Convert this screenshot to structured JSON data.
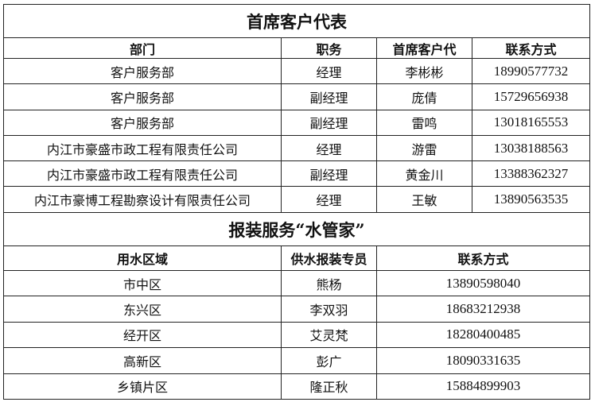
{
  "section1": {
    "title": "首席客户代表",
    "headers": [
      "部门",
      "职务",
      "首席客户代",
      "联系方式"
    ],
    "rows": [
      [
        "客户服务部",
        "经理",
        "李彬彬",
        "18990577732"
      ],
      [
        "客户服务部",
        "副经理",
        "庞倩",
        "15729656938"
      ],
      [
        "客户服务部",
        "副经理",
        "雷鸣",
        "13018165553"
      ],
      [
        "内江市豪盛市政工程有限责任公司",
        "经理",
        "游雷",
        "13038188563"
      ],
      [
        "内江市豪盛市政工程有限责任公司",
        "副经理",
        "黄金川",
        "13388362327"
      ],
      [
        "内江市豪博工程勘察设计有限责任公司",
        "经理",
        "王敏",
        "13890563535"
      ]
    ]
  },
  "section2": {
    "title": "报装服务“水管家”",
    "headers": [
      "用水区域",
      "供水报装专员",
      "联系方式"
    ],
    "rows": [
      [
        "市中区",
        "熊杨",
        "13890598040"
      ],
      [
        "东兴区",
        "李双羽",
        "18683212938"
      ],
      [
        "经开区",
        "艾灵梵",
        "18280400485"
      ],
      [
        "高新区",
        "彭广",
        "18090331635"
      ],
      [
        "乡镇片区",
        "隆正秋",
        "15884899903"
      ]
    ]
  }
}
